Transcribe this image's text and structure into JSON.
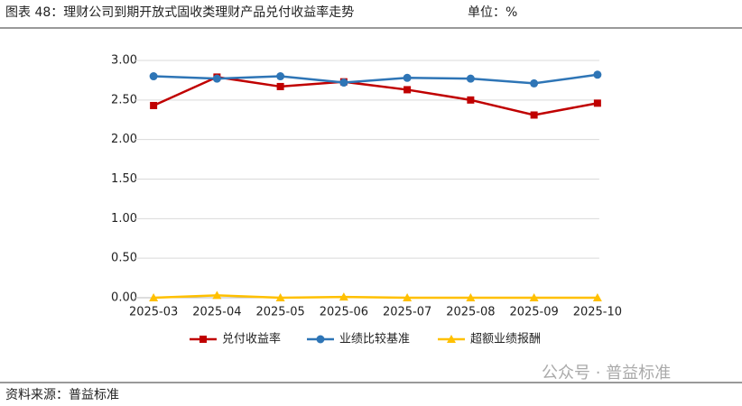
{
  "chart_data": {
    "type": "line",
    "title": "图表 48：理财公司到期开放式固收类理财产品兑付收益率走势",
    "unit": "单位：%",
    "source": "资料来源：普益标准",
    "watermark": "公众号 · 普益标准",
    "categories": [
      "2025-03",
      "2025-04",
      "2025-05",
      "2025-06",
      "2025-07",
      "2025-08",
      "2025-09",
      "2025-10"
    ],
    "series": [
      {
        "name": "兑付收益率",
        "color": "#c00000",
        "marker": "square",
        "values": [
          2.43,
          2.79,
          2.67,
          2.73,
          2.63,
          2.5,
          2.31,
          2.46
        ]
      },
      {
        "name": "业绩比较基准",
        "color": "#2e75b6",
        "marker": "circle",
        "values": [
          2.8,
          2.77,
          2.8,
          2.72,
          2.78,
          2.77,
          2.71,
          2.82
        ]
      },
      {
        "name": "超额业绩报酬",
        "color": "#ffc000",
        "marker": "triangle",
        "values": [
          0.0,
          0.03,
          0.0,
          0.01,
          0.0,
          0.0,
          0.0,
          0.0
        ]
      }
    ],
    "ylim": [
      0,
      3
    ],
    "yticks": [
      {
        "value": 0,
        "label": "0.00"
      },
      {
        "value": 0.5,
        "label": "0.50"
      },
      {
        "value": 1,
        "label": "1.00"
      },
      {
        "value": 1.5,
        "label": "1.50"
      },
      {
        "value": 2,
        "label": "2.00"
      },
      {
        "value": 2.5,
        "label": "2.50"
      },
      {
        "value": 3,
        "label": "3.00"
      }
    ],
    "grid": true
  }
}
